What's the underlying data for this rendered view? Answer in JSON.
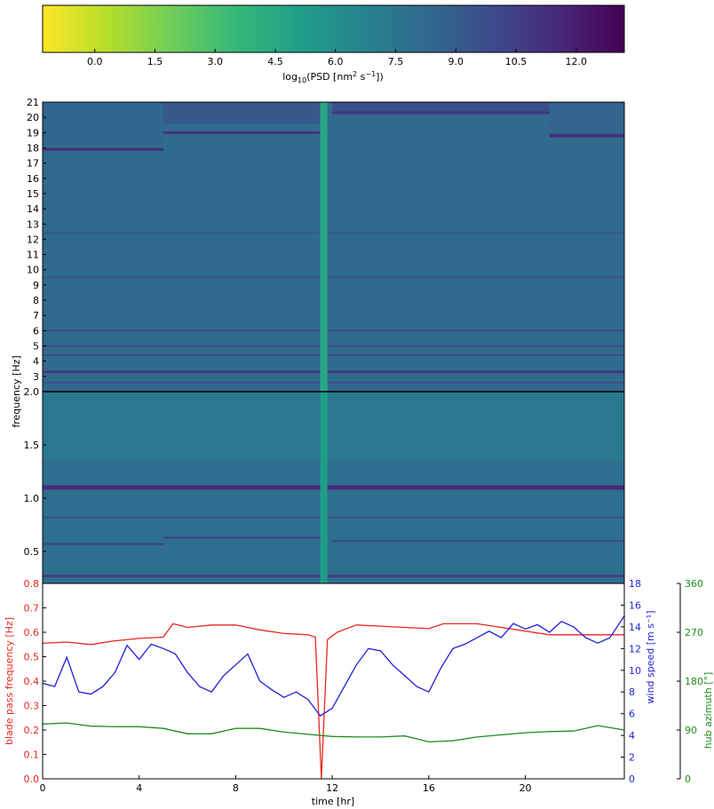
{
  "chart_data": [
    {
      "type": "heatmap",
      "colorbar": {
        "label": "log10(PSD [nm² s⁻¹])",
        "label_parts": {
          "pre": "log",
          "sub": "10",
          "mid": "(PSD [nm",
          "sup1": "2",
          "mid2": " s",
          "sup2": "−1",
          "post": "])"
        },
        "range": [
          -1.3,
          13.2
        ],
        "ticks": [
          "0.0",
          "1.5",
          "3.0",
          "4.5",
          "6.0",
          "7.5",
          "9.0",
          "10.5",
          "12.0"
        ],
        "colormap": [
          "#fde725",
          "#b5de2b",
          "#6ece58",
          "#35b779",
          "#1f9e89",
          "#26828e",
          "#31688e",
          "#3e4989",
          "#482878",
          "#440154"
        ]
      },
      "upper": {
        "ylim": [
          2,
          21
        ],
        "yticks": [
          "2.0",
          "3",
          "4",
          "5",
          "6",
          "7",
          "8",
          "9",
          "10",
          "11",
          "12",
          "13",
          "14",
          "15",
          "16",
          "17",
          "18",
          "19",
          "20",
          "21"
        ]
      },
      "lower": {
        "ylim": [
          0.2,
          2.0
        ],
        "yticks": [
          "0.5",
          "1.0",
          "1.5"
        ],
        "top_tick": "0.8"
      },
      "ylabel": "frequency [Hz]",
      "xlim": [
        0,
        24.1
      ]
    },
    {
      "type": "line",
      "xlabel": "time [hr]",
      "xlim": [
        0,
        24.1
      ],
      "xticks": [
        "0",
        "4",
        "8",
        "12",
        "16",
        "20"
      ],
      "axes": {
        "left": {
          "label": "blade pass frequency [Hz]",
          "color": "#e8281f",
          "range": [
            0,
            0.8
          ],
          "ticks": [
            "0.0",
            "0.1",
            "0.2",
            "0.3",
            "0.4",
            "0.5",
            "0.6",
            "0.7",
            "0.8"
          ]
        },
        "right1": {
          "label": "wind speed [m s⁻¹]",
          "color": "#1f1fd6",
          "range": [
            0,
            18
          ],
          "ticks": [
            "0",
            "2",
            "4",
            "6",
            "8",
            "10",
            "12",
            "14",
            "16",
            "18"
          ]
        },
        "right2": {
          "label": "hub azimuth [°]",
          "color": "#1e8c1e",
          "range": [
            0,
            360
          ],
          "ticks": [
            "0",
            "90",
            "180",
            "270",
            "360"
          ]
        }
      },
      "series": [
        {
          "axis": "left",
          "color": "#e8281f",
          "x": [
            0,
            1,
            2,
            3,
            4,
            5,
            5.4,
            6,
            7,
            8,
            9,
            10,
            11,
            11.3,
            11.55,
            11.8,
            12.2,
            13,
            14,
            15,
            16,
            16.6,
            18,
            21,
            24.1
          ],
          "y": [
            0.555,
            0.56,
            0.55,
            0.565,
            0.575,
            0.58,
            0.635,
            0.62,
            0.63,
            0.63,
            0.61,
            0.595,
            0.59,
            0.58,
            0.0,
            0.57,
            0.6,
            0.63,
            0.625,
            0.62,
            0.615,
            0.635,
            0.635,
            0.59,
            0.59
          ]
        },
        {
          "axis": "right1",
          "color": "#1f1fd6",
          "x": [
            0,
            0.5,
            1,
            1.5,
            2,
            2.5,
            3,
            3.5,
            4,
            4.5,
            5,
            5.5,
            6,
            6.5,
            7,
            7.5,
            8,
            8.5,
            9,
            9.5,
            10,
            10.5,
            11,
            11.5,
            12,
            12.5,
            13,
            13.5,
            14,
            14.5,
            15,
            15.5,
            16,
            16.5,
            17,
            17.5,
            18,
            18.5,
            19,
            19.5,
            20,
            20.5,
            21,
            21.5,
            22,
            22.5,
            23,
            23.5,
            24.1
          ],
          "y": [
            8.8,
            8.5,
            11.2,
            8.0,
            7.8,
            8.5,
            9.8,
            12.3,
            11.0,
            12.4,
            12.0,
            11.5,
            9.8,
            8.5,
            8.0,
            9.5,
            10.5,
            11.5,
            9.0,
            8.2,
            7.5,
            8.0,
            7.3,
            5.8,
            6.5,
            8.5,
            10.5,
            12.0,
            11.8,
            10.5,
            9.5,
            8.5,
            8.0,
            10.2,
            12.0,
            12.4,
            13.0,
            13.6,
            13.0,
            14.3,
            13.8,
            14.2,
            13.5,
            14.5,
            14.0,
            13.0,
            12.5,
            13.0,
            15.0
          ]
        },
        {
          "axis": "right2",
          "color": "#1e8c1e",
          "x": [
            0,
            1,
            2,
            3,
            4,
            5,
            6,
            7,
            8,
            9,
            10,
            11,
            12,
            13,
            14,
            15,
            16,
            17,
            18,
            19,
            20,
            21,
            22,
            23,
            24.1
          ],
          "y": [
            101,
            103,
            97,
            96,
            96,
            93,
            83,
            83,
            93,
            93,
            86,
            82,
            78,
            77,
            77,
            79,
            68,
            70,
            77,
            81,
            85,
            87,
            88,
            98,
            90
          ]
        }
      ]
    }
  ]
}
